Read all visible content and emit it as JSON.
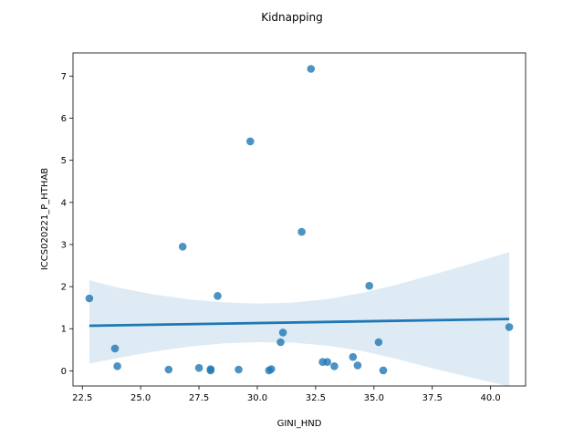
{
  "chart_data": {
    "type": "scatter",
    "title": "Kidnapping",
    "xlabel": "GINI_HND",
    "ylabel": "ICCS020221_P_HTHAB",
    "xlim": [
      22.1,
      41.5
    ],
    "ylim": [
      -0.36,
      7.55
    ],
    "xticks": [
      22.5,
      25.0,
      27.5,
      30.0,
      32.5,
      35.0,
      37.5,
      40.0
    ],
    "xtick_labels": [
      "22.5",
      "25.0",
      "27.5",
      "30.0",
      "32.5",
      "35.0",
      "37.5",
      "40.0"
    ],
    "yticks": [
      0,
      1,
      2,
      3,
      4,
      5,
      6,
      7
    ],
    "ytick_labels": [
      "0",
      "1",
      "2",
      "3",
      "4",
      "5",
      "6",
      "7"
    ],
    "grid": false,
    "point_color": "#1f77b4",
    "band_color": "#1f77b4",
    "points": [
      {
        "x": 22.8,
        "y": 1.72
      },
      {
        "x": 23.9,
        "y": 0.53
      },
      {
        "x": 24.0,
        "y": 0.11
      },
      {
        "x": 26.2,
        "y": 0.03
      },
      {
        "x": 26.8,
        "y": 2.95
      },
      {
        "x": 27.5,
        "y": 0.07
      },
      {
        "x": 28.0,
        "y": 0.04
      },
      {
        "x": 28.0,
        "y": 0.01
      },
      {
        "x": 28.3,
        "y": 1.78
      },
      {
        "x": 29.2,
        "y": 0.03
      },
      {
        "x": 29.7,
        "y": 5.45
      },
      {
        "x": 30.5,
        "y": 0.01
      },
      {
        "x": 30.6,
        "y": 0.04
      },
      {
        "x": 31.0,
        "y": 0.68
      },
      {
        "x": 31.1,
        "y": 0.91
      },
      {
        "x": 31.9,
        "y": 3.3
      },
      {
        "x": 32.3,
        "y": 7.17
      },
      {
        "x": 32.8,
        "y": 0.21
      },
      {
        "x": 33.0,
        "y": 0.21
      },
      {
        "x": 33.3,
        "y": 0.11
      },
      {
        "x": 34.1,
        "y": 0.33
      },
      {
        "x": 34.3,
        "y": 0.13
      },
      {
        "x": 34.8,
        "y": 2.02
      },
      {
        "x": 35.2,
        "y": 0.68
      },
      {
        "x": 35.4,
        "y": 0.01
      },
      {
        "x": 40.8,
        "y": 1.04
      }
    ],
    "regression": {
      "x": [
        22.8,
        40.8
      ],
      "y": [
        1.07,
        1.23
      ]
    },
    "confidence_band": {
      "x": [
        22.8,
        24.0,
        25.5,
        27.0,
        28.5,
        30.0,
        31.5,
        33.0,
        34.5,
        36.0,
        37.5,
        39.0,
        40.8
      ],
      "upper": [
        2.15,
        1.98,
        1.82,
        1.7,
        1.63,
        1.6,
        1.62,
        1.7,
        1.85,
        2.05,
        2.28,
        2.52,
        2.82
      ],
      "lower": [
        0.17,
        0.3,
        0.45,
        0.57,
        0.65,
        0.68,
        0.67,
        0.6,
        0.47,
        0.28,
        0.06,
        -0.14,
        -0.37
      ]
    }
  }
}
